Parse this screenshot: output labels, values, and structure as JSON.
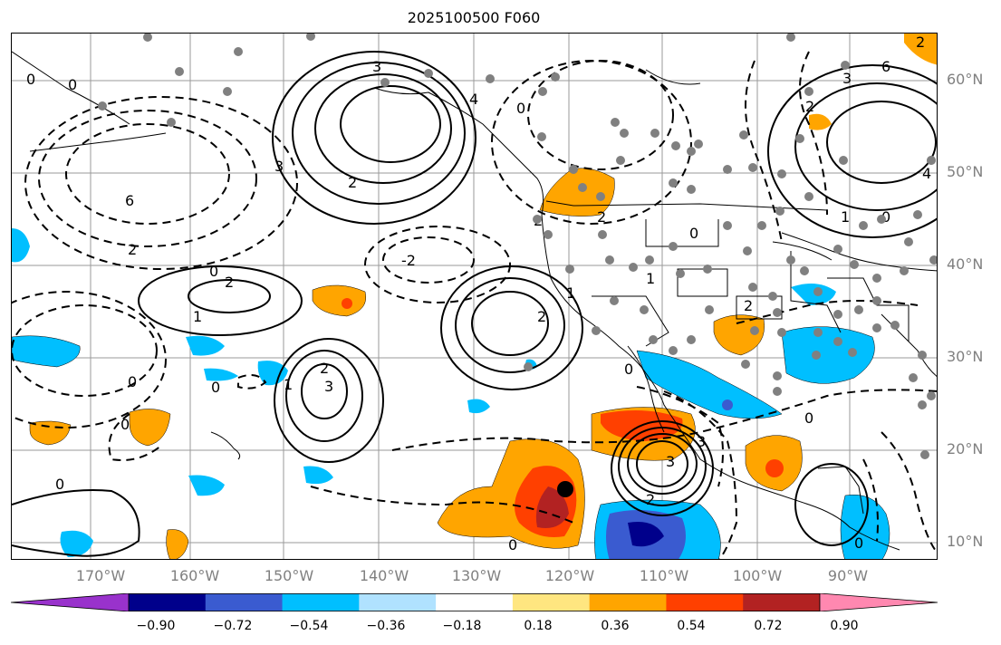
{
  "title": "2025100500 F060",
  "lat_labels": [
    "60°N",
    "50°N",
    "40°N",
    "30°N",
    "20°N",
    "10°N"
  ],
  "lon_labels": [
    "170°W",
    "160°W",
    "150°W",
    "140°W",
    "130°W",
    "120°W",
    "110°W",
    "100°W",
    "90°W"
  ],
  "colorbar": {
    "ticks": [
      "−0.90",
      "−0.72",
      "−0.54",
      "−0.36",
      "−0.18",
      "0.18",
      "0.36",
      "0.54",
      "0.72",
      "0.90"
    ],
    "colors": [
      "#9932cc",
      "#00008b",
      "#3a5bd0",
      "#00bfff",
      "#b0e2ff",
      "#ffffff",
      "#ffe680",
      "#ffa500",
      "#ff4000",
      "#b22222",
      "#ff88b0"
    ]
  },
  "contour_labels": [
    "3",
    "4",
    "6",
    "2",
    "0",
    "1",
    "2",
    "2",
    "3",
    "2",
    "1",
    "0",
    "-2",
    "2",
    "0",
    "1",
    "2",
    "2",
    "0",
    "0",
    "0",
    "2",
    "3",
    "3",
    "2",
    "1",
    "0",
    "0",
    "2",
    "3",
    "6",
    "2",
    "4",
    "3",
    "1",
    "0",
    "0",
    "0",
    "0",
    "0",
    "0"
  ],
  "colors": {
    "contour": "#000000",
    "station": "#808080",
    "marker": "#000000"
  }
}
